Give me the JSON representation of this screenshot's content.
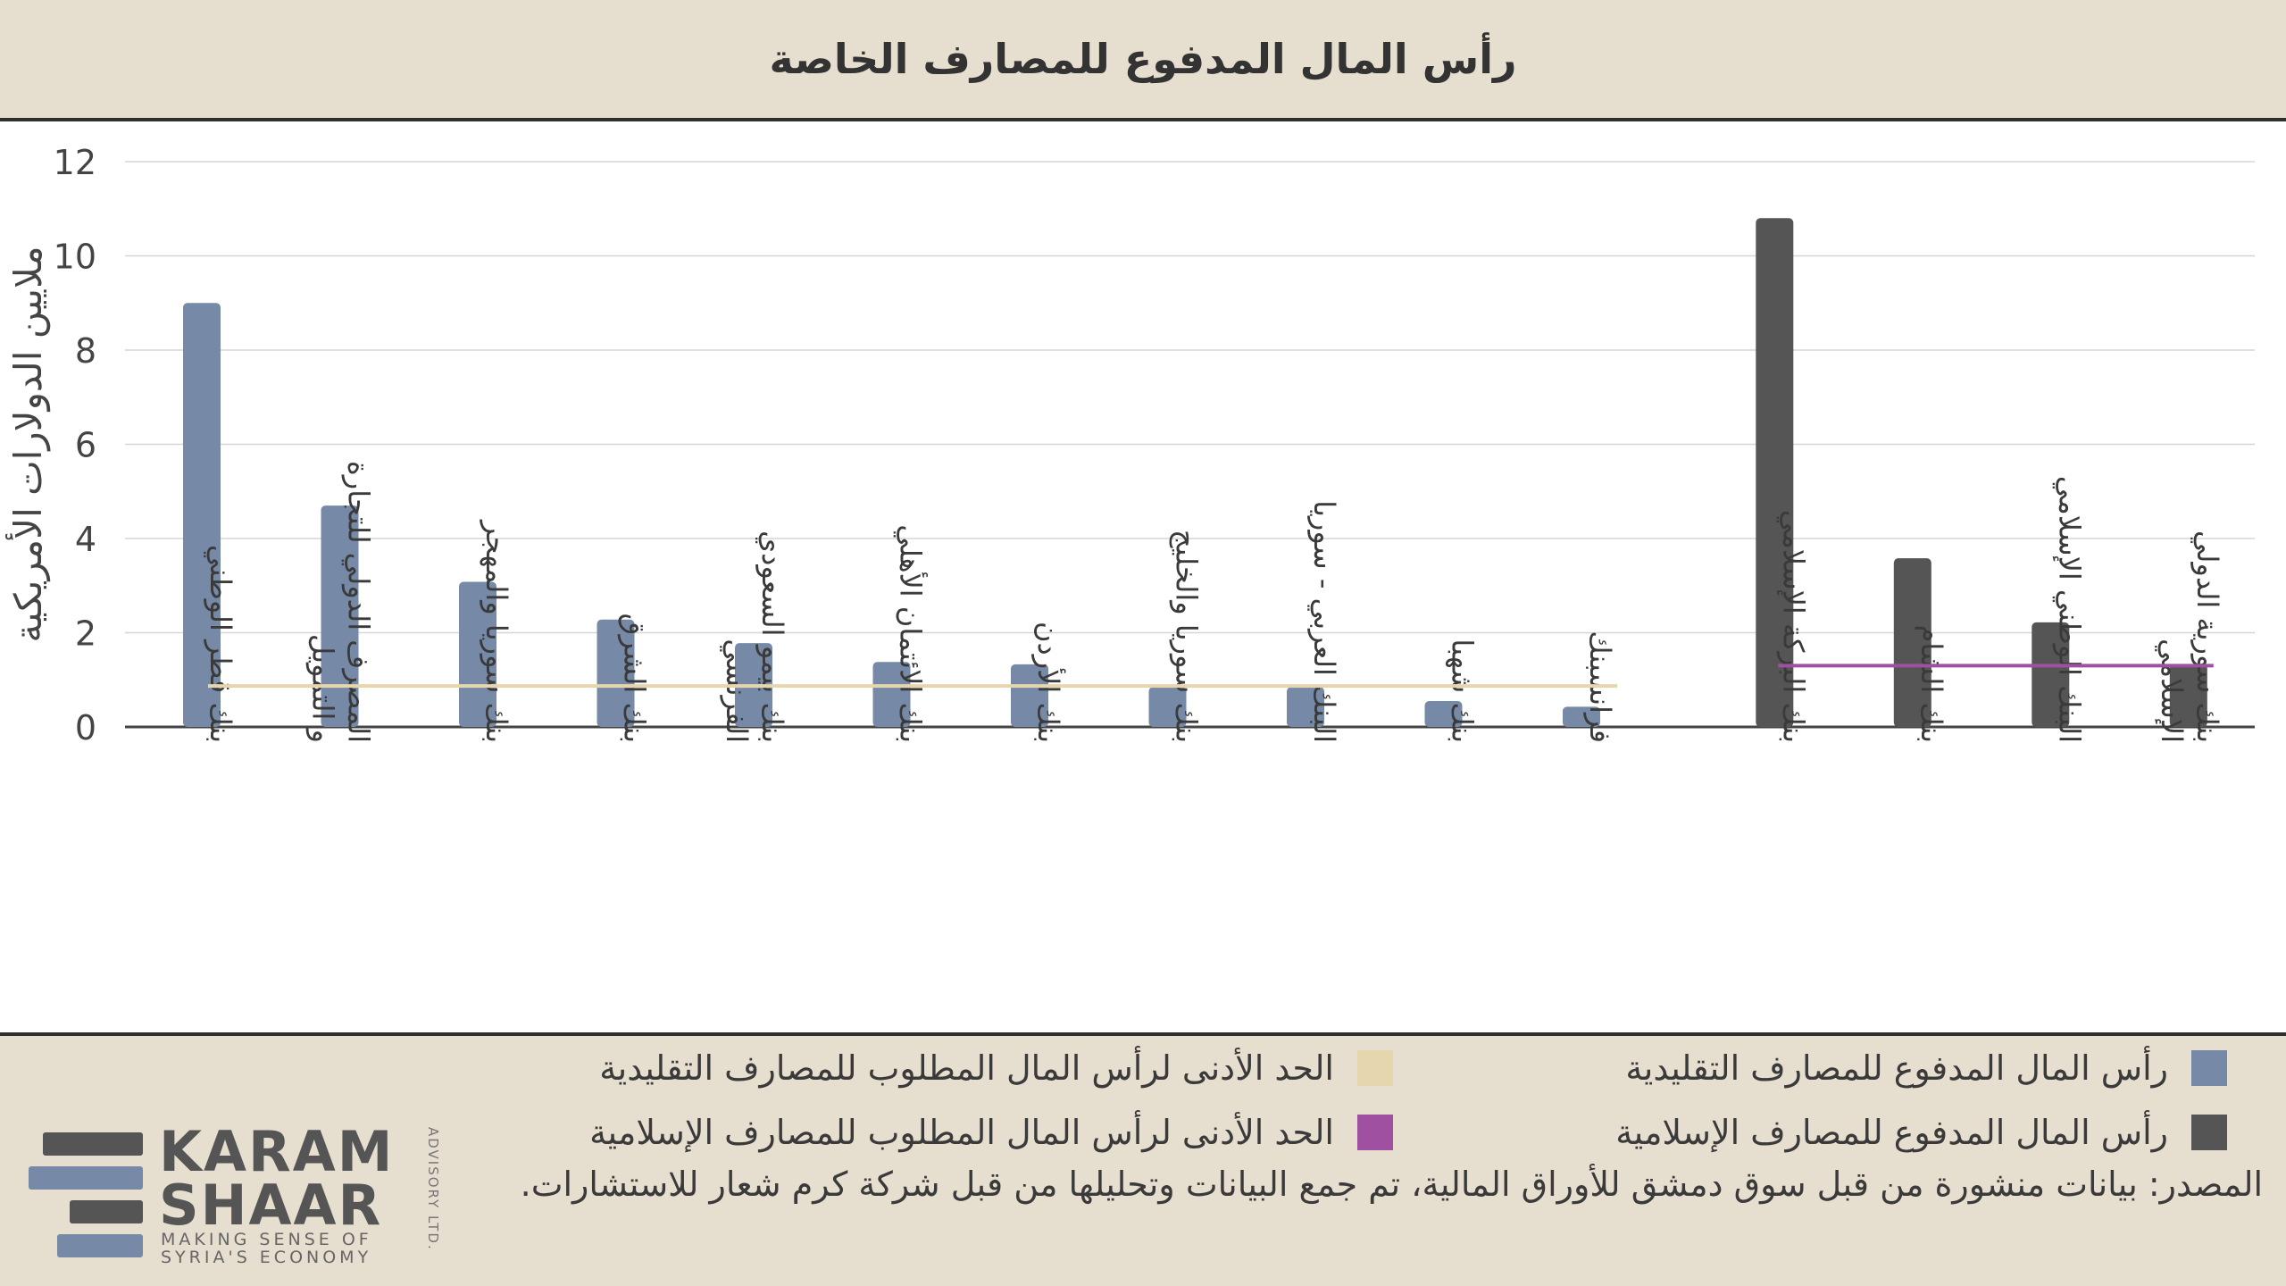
{
  "header": {
    "title": "رأس المال المدفوع للمصارف الخاصة"
  },
  "chart_data": {
    "type": "bar",
    "ylabel": "ملايين الدولارات الأمريكية",
    "ylim": [
      0,
      12
    ],
    "yticks": [
      0,
      2,
      4,
      6,
      8,
      10,
      12
    ],
    "grid": true,
    "groups": [
      {
        "name": "رأس المال المدفوع للمصارف التقليدية",
        "color": "#7689a6",
        "categories": [
          [
            "بنك قطر الوطني"
          ],
          [
            "المصرف الدولي للتجارة",
            "و التمويل"
          ],
          [
            "بنك سوريا والمهجر"
          ],
          [
            "بنك الشرق"
          ],
          [
            "بنك بيمو السعودي",
            "الفرنسي"
          ],
          [
            "بنك الائتمان الأهلي"
          ],
          [
            "بنك الأردن"
          ],
          [
            "بنك  سوريا والخليج"
          ],
          [
            "البنك العربي - سوريا"
          ],
          [
            "بنك شهبا"
          ],
          [
            "فرانسبنك"
          ]
        ],
        "values": [
          9.0,
          4.7,
          3.08,
          2.28,
          1.78,
          1.38,
          1.33,
          0.85,
          0.85,
          0.55,
          0.43
        ],
        "minimum": {
          "name": "الحد الأدنى لرأس المال المطلوب للمصارف التقليدية",
          "value": 0.87,
          "color": "#e6d6ad"
        }
      },
      {
        "name": "رأس المال المدفوع للمصارف الإسلامية",
        "color": "#555555",
        "categories": [
          [
            "بنك البركة الإسلامي"
          ],
          [
            "بنك الشام"
          ],
          [
            "البنك الوطني الإسلامي"
          ],
          [
            "بنك سورية الدولي",
            "الإسلامي"
          ]
        ],
        "values": [
          10.8,
          3.58,
          2.22,
          1.33
        ],
        "minimum": {
          "name": "الحد الأدنى لرأس المال المطلوب للمصارف الإسلامية",
          "value": 1.3,
          "color": "#a050a0"
        }
      }
    ]
  },
  "legend": {
    "conventional_paid": "رأس المال المدفوع للمصارف التقليدية",
    "islamic_paid": "رأس المال المدفوع للمصارف الإسلامية",
    "conventional_min": "الحد الأدنى لرأس المال المطلوب للمصارف التقليدية",
    "islamic_min": "الحد الأدنى لرأس المال المطلوب للمصارف الإسلامية"
  },
  "source": "المصدر: بيانات منشورة من قبل سوق دمشق للأوراق المالية، تم جمع البيانات وتحليلها من قبل شركة كرم شعار للاستشارات.",
  "logo": {
    "name_line1": "KARAM",
    "name_line2": "SHAAR",
    "tagline_line1": "MAKING SENSE OF",
    "tagline_line2": "SYRIA'S ECONOMY",
    "side": "ADVISORY LTD."
  },
  "colors": {
    "conventional": "#7689a6",
    "islamic": "#555555",
    "conventional_min": "#e6d6ad",
    "islamic_min": "#a050a0"
  }
}
